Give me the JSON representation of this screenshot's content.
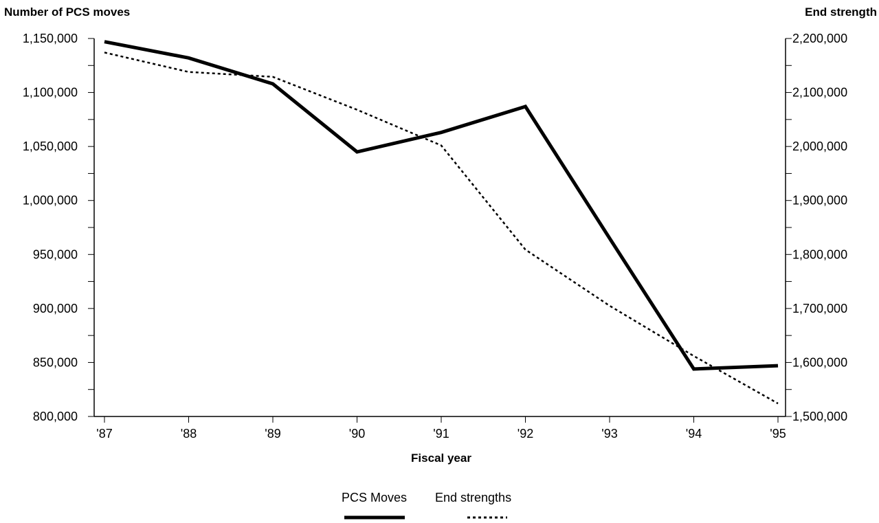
{
  "chart_data": {
    "type": "line",
    "x": [
      "'87",
      "'88",
      "'89",
      "'90",
      "'91",
      "'92",
      "'93",
      "'94",
      "'95"
    ],
    "xlabel": "Fiscal year",
    "y_left": {
      "label": "Number of PCS moves",
      "range": [
        800000,
        1150000
      ],
      "ticks": [
        "800,000",
        "850,000",
        "900,000",
        "950,000",
        "1,000,000",
        "1,050,000",
        "1,100,000",
        "1,150,000"
      ],
      "tick_values": [
        800000,
        850000,
        900000,
        950000,
        1000000,
        1050000,
        1100000,
        1150000
      ]
    },
    "y_right": {
      "label": "End strength",
      "range": [
        1500000,
        2200000
      ],
      "ticks": [
        "1,500,000",
        "1,600,000",
        "1,700,000",
        "1,800,000",
        "1,900,000",
        "2,000,000",
        "2,100,000",
        "2,200,000"
      ],
      "tick_values": [
        1500000,
        1600000,
        1700000,
        1800000,
        1900000,
        2000000,
        2100000,
        2200000
      ]
    },
    "series": [
      {
        "name": "PCS Moves",
        "axis": "left",
        "style": "solid",
        "values": [
          1147000,
          1132000,
          1108000,
          1045000,
          1063000,
          1087000,
          965000,
          844000,
          847000
        ]
      },
      {
        "name": "End strengths",
        "axis": "right",
        "style": "dotted",
        "values": [
          2174000,
          2138000,
          2129000,
          2068000,
          2002000,
          1809000,
          1705000,
          1612000,
          1524000
        ]
      }
    ],
    "grid": false,
    "legend_position": "bottom-center",
    "colors": {
      "line": "#000000"
    }
  }
}
